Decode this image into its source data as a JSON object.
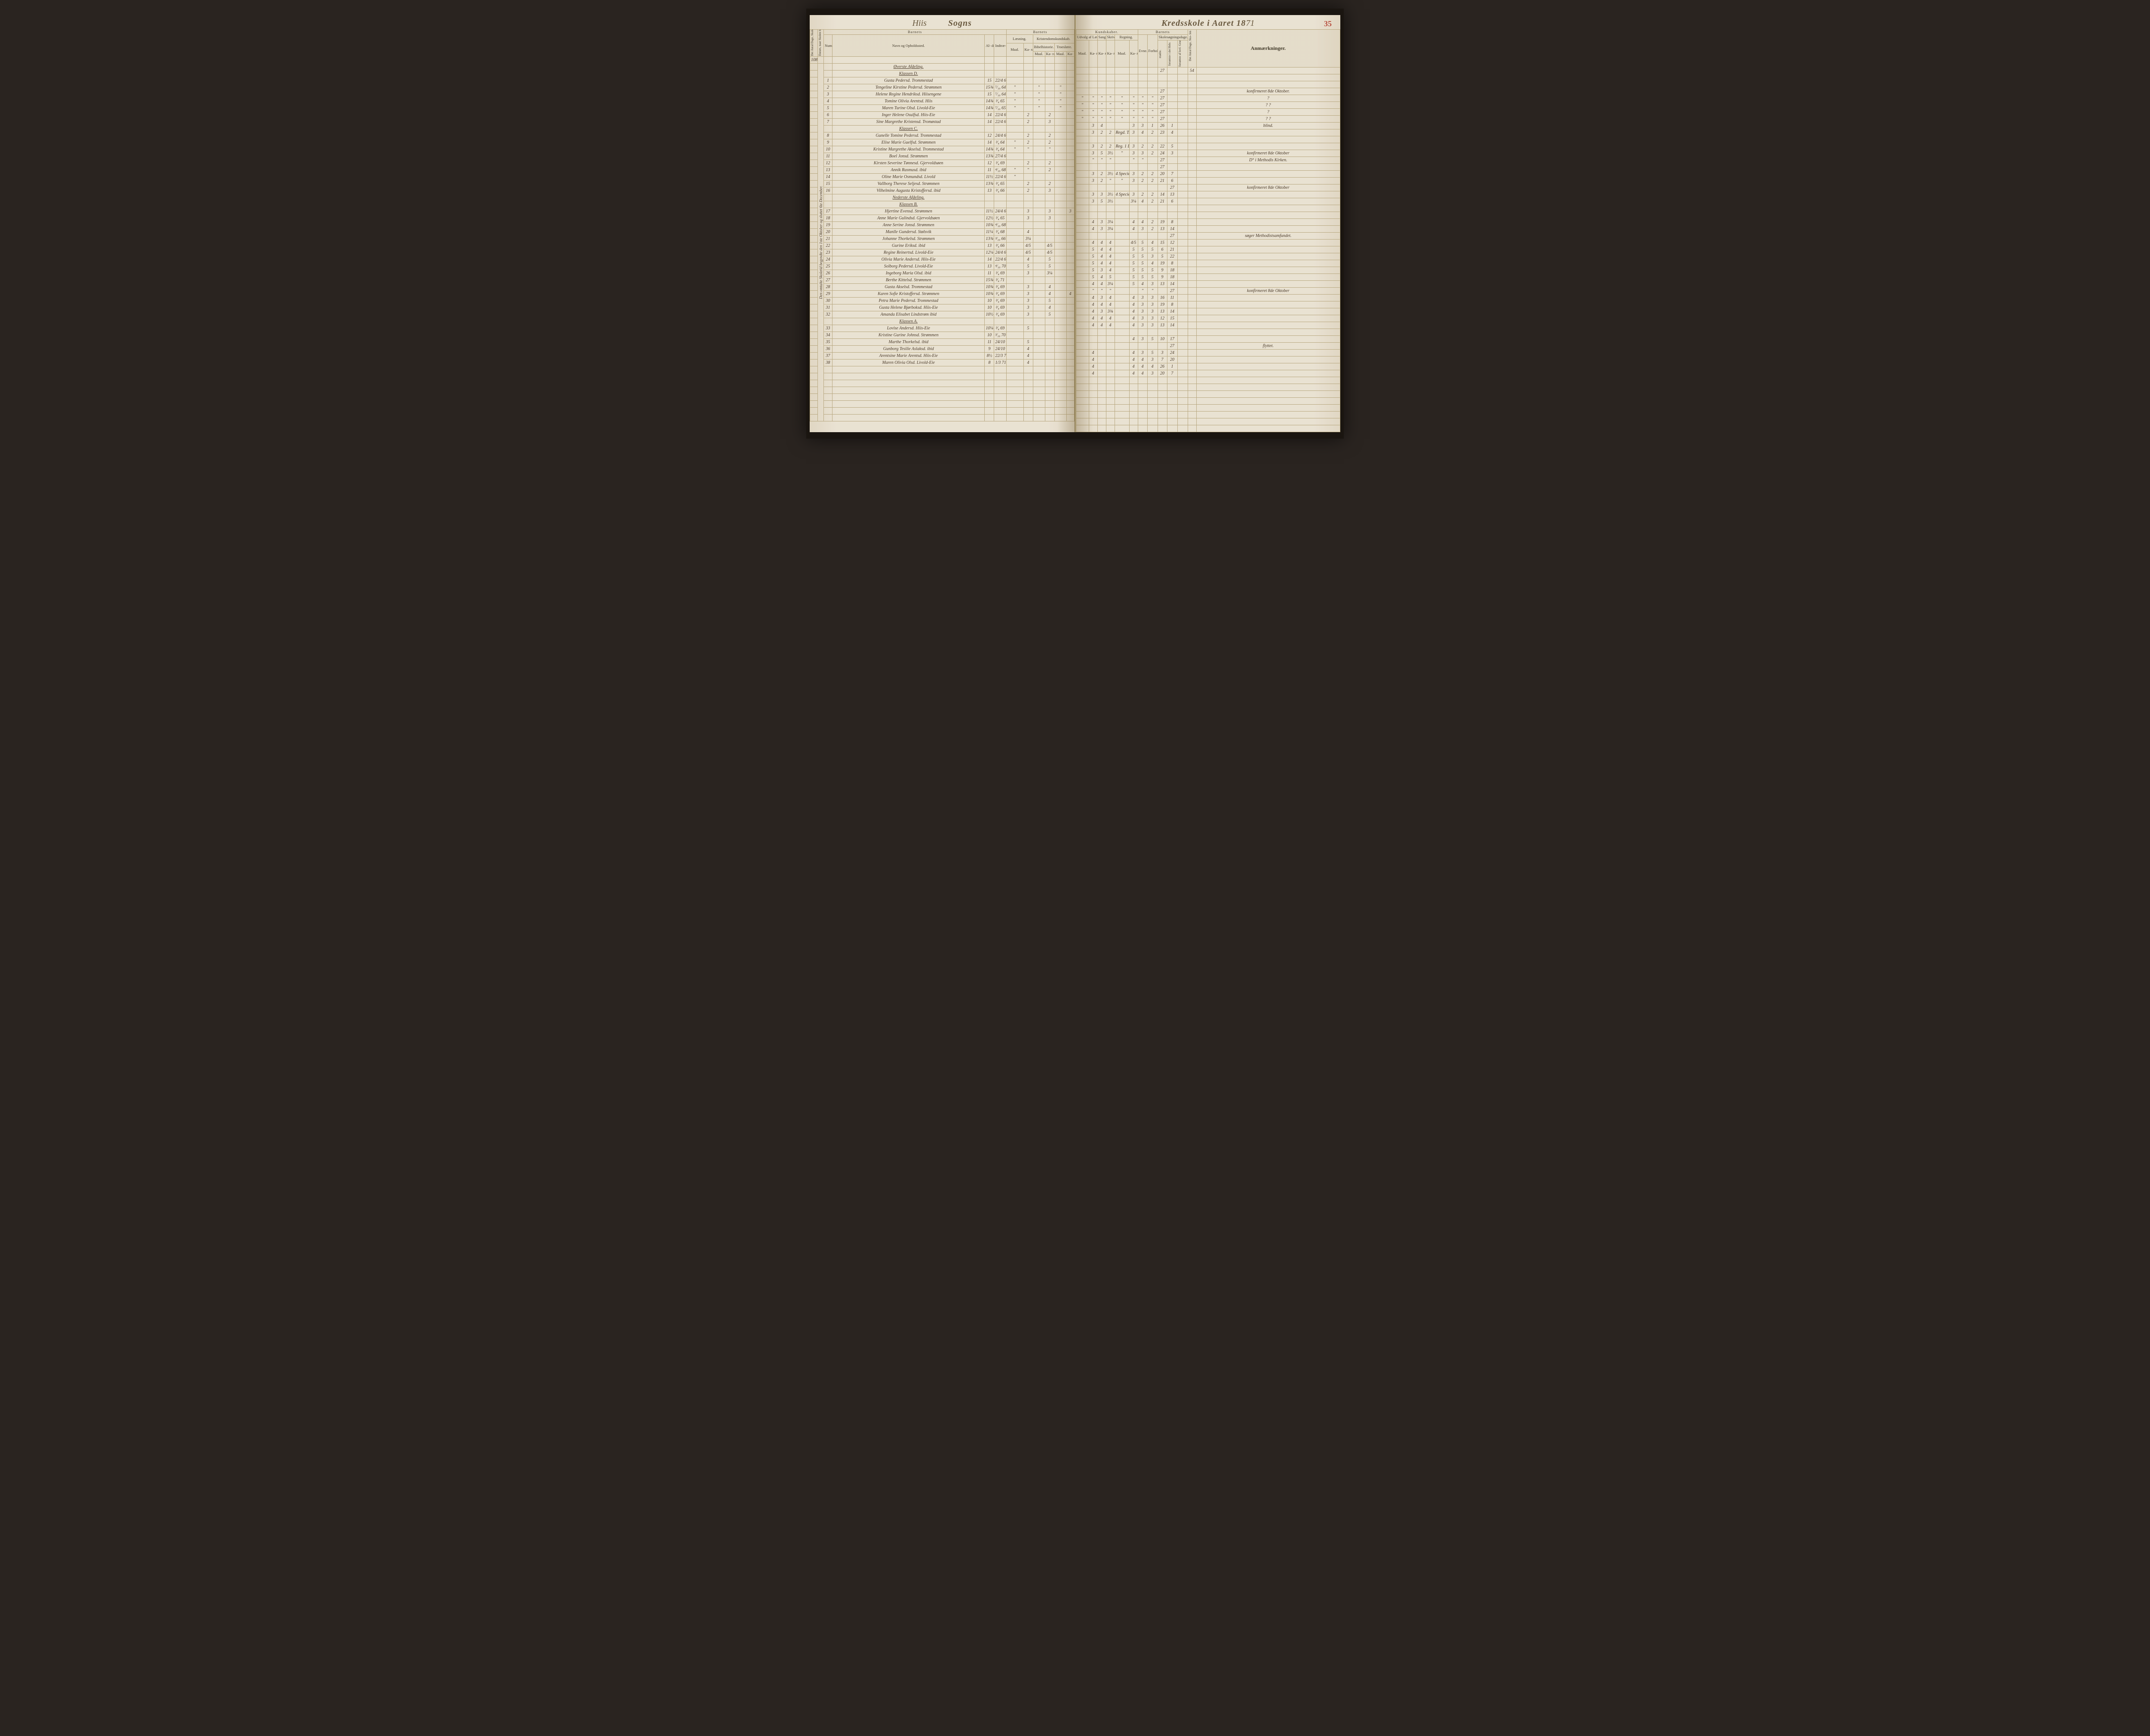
{
  "page_number": "35",
  "header": {
    "parish_handwritten": "Hiis",
    "sogns": "Sogns",
    "kredsskole": "Kredsskole i Aaret 18",
    "year_hand": "71"
  },
  "col_headers": {
    "left_group": "Barnets",
    "nummer": "Num-\nmer.",
    "navn": "Navn og Opholdssted.",
    "alder": "Al-\nder.",
    "indtr": "Indtræ-\ndelses-\nDatum.",
    "laesning": "Læsning.",
    "kristendom": "Kristendomskundskab.",
    "bibel": "Bibelhistorie.",
    "troes": "Troeslære.",
    "maal": "Maal.",
    "karakter": "Ka-\nrak-\nter.",
    "kundskaber": "Kundskaber.",
    "udvalg": "Udvalg af\nLæsebogen.",
    "sang": "Sang.",
    "skriv": "Skriv-\nning.",
    "regning": "Regning.",
    "barnets2": "Barnets",
    "evne": "Evne.",
    "forhold": "Forhold.",
    "skolesog": "Skolesøgningsdage.",
    "modte": "mødte.",
    "fors_hele": "forsømte i\ndet Hele.",
    "fors_lov": "forsømte af\nlovl. Grund.",
    "antal_dage_v": "Det Antal Dage, Sko-\nlen i Virkeligheden\ner holdt.",
    "anm": "Anmærkninger.",
    "omgang": "Det Antal Dage, Skolen\nskal holdes i Kredsen.",
    "datum_skole": "Datum, naar Skolen be-\ngynder og slutter hver\nOmgang."
  },
  "top_totals": {
    "antal_dage": "108",
    "sd1": "27",
    "sd_total": "54"
  },
  "sections": [
    {
      "title": "Øverste Afdeling.",
      "sub": "Klassen D."
    },
    {
      "title": "Klassen C."
    },
    {
      "title": "Nederste Afdeling.",
      "sub": "Klassen B."
    },
    {
      "title": "Klassen A."
    }
  ],
  "margin_left": "Den omtalte Skoletid begyndte den 1ste Oktober og sluttet 6te December.",
  "rows": [
    {
      "n": "1",
      "name": "Gusta Pedersd. Trommestad",
      "ald": "15",
      "dat": "22/4 65",
      "m1": "",
      "k1": "",
      "m2": "",
      "k2": "",
      "m3": "",
      "k3": "",
      "m4": "",
      "k4": "",
      "k5": "",
      "k6": "",
      "m5": "",
      "k7": "",
      "ev": "",
      "fo": "",
      "md": "27",
      "f1": "",
      "f2": "",
      "anm": "konfirmeret 8de Oktober."
    },
    {
      "n": "2",
      "name": "Tengeline Kirstine Pedersd. Strømmen",
      "ald": "15¾",
      "dat": "⁷⁄₁₀ 64",
      "m1": "\"",
      "k1": "",
      "m2": "\"",
      "k2": "",
      "m3": "\"",
      "k3": "",
      "m4": "\"",
      "k4": "\"",
      "k5": "\"",
      "k6": "\"",
      "m5": "\"",
      "k7": "\"",
      "ev": "\"",
      "fo": "\"",
      "md": "27",
      "f1": "",
      "f2": "",
      "anm": "?"
    },
    {
      "n": "3",
      "name": "Helene Regine Hendriksd. Hiisengene",
      "ald": "15",
      "dat": "⁷⁄₁₀ 64",
      "m1": "\"",
      "k1": "",
      "m2": "\"",
      "k2": "",
      "m3": "\"",
      "k3": "",
      "m4": "\"",
      "k4": "\"",
      "k5": "\"",
      "k6": "\"",
      "m5": "\"",
      "k7": "\"",
      "ev": "\"",
      "fo": "\"",
      "md": "27",
      "f1": "",
      "f2": "",
      "anm": "?    ?"
    },
    {
      "n": "4",
      "name": "Tomine Olivia Arentsd. Hiis",
      "ald": "14¾",
      "dat": "³⁄₄ 65",
      "m1": "\"",
      "k1": "",
      "m2": "\"",
      "k2": "",
      "m3": "\"",
      "k3": "",
      "m4": "\"",
      "k4": "\"",
      "k5": "\"",
      "k6": "\"",
      "m5": "\"",
      "k7": "\"",
      "ev": "\"",
      "fo": "\"",
      "md": "27",
      "f1": "",
      "f2": "",
      "anm": "?"
    },
    {
      "n": "5",
      "name": "Maren Turine Olsd. Livold-Eie",
      "ald": "14¾",
      "dat": "⁷⁄₁₀ 65",
      "m1": "\"",
      "k1": "",
      "m2": "\"",
      "k2": "",
      "m3": "\"",
      "k3": "",
      "m4": "\"",
      "k4": "\"",
      "k5": "\"",
      "k6": "\"",
      "m5": "\"",
      "k7": "\"",
      "ev": "\"",
      "fo": "\"",
      "md": "27",
      "f1": "",
      "f2": "",
      "anm": "?    ?"
    },
    {
      "n": "6",
      "name": "Inger Helene Osulfsd. Hiis-Eie",
      "ald": "14",
      "dat": "22/4 65",
      "m1": "",
      "k1": "2",
      "m2": "",
      "k2": "2",
      "m3": "",
      "k3": "",
      "m4": "",
      "k4": "3",
      "k5": "4",
      "k6": "",
      "m5": "",
      "k7": "3",
      "ev": "3",
      "fo": "1",
      "md": "26",
      "f1": "1",
      "f2": "",
      "anm": "blind."
    },
    {
      "n": "7",
      "name": "Sine Margrethe Kristensd. Tromøstad",
      "ald": "14",
      "dat": "22/4 65",
      "m1": "",
      "k1": "2",
      "m2": "",
      "k2": "3",
      "m3": "",
      "k3": "",
      "m4": "",
      "k4": "3",
      "k5": "2",
      "k6": "2",
      "m5": "Regd. Tr.",
      "k7": "3",
      "ev": "4",
      "fo": "2",
      "md": "23",
      "f1": "4",
      "f2": "",
      "anm": ""
    },
    {
      "n": "8",
      "name": "Gunelle Tomine Pedersd. Trommestad",
      "ald": "12",
      "dat": "24/4 68",
      "m1": "",
      "k1": "2",
      "m2": "",
      "k2": "2",
      "m3": "",
      "k3": "",
      "m4": "",
      "k4": "3",
      "k5": "2",
      "k6": "2",
      "m5": "Reg. 1 Del",
      "k7": "3",
      "ev": "2",
      "fo": "2",
      "md": "22",
      "f1": "5",
      "f2": "",
      "anm": ""
    },
    {
      "n": "9",
      "name": "Elise Marie Guelfsd. Strømmen",
      "ald": "14",
      "dat": "³⁄₄ 64",
      "m1": "\"",
      "k1": "2",
      "m2": "",
      "k2": "2",
      "m3": "",
      "k3": "",
      "m4": "",
      "k4": "3",
      "k5": "5",
      "k6": "3½",
      "m5": "\"",
      "k7": "3",
      "ev": "3",
      "fo": "2",
      "md": "24",
      "f1": "3",
      "f2": "",
      "anm": "konfirmeret 8de Oktober"
    },
    {
      "n": "10",
      "name": "Kristine Margrethe Akselsd. Trommestad",
      "ald": "14¾",
      "dat": "³⁄₄ 64",
      "m1": "\"",
      "k1": "\"",
      "m2": "",
      "k2": "\"",
      "m3": "",
      "k3": "",
      "m4": "",
      "k4": "\"",
      "k5": "\"",
      "k6": "\"",
      "m5": "",
      "k7": "\"",
      "ev": "\"",
      "fo": "",
      "md": "27",
      "f1": "",
      "f2": "",
      "anm": "D° i Methodis Kirken."
    },
    {
      "n": "11",
      "name": "Boel Jonsd. Strømmen",
      "ald": "13¾",
      "dat": "27/4 68",
      "m1": "",
      "k1": "",
      "m2": "",
      "k2": "",
      "m3": "",
      "k3": "",
      "m4": "",
      "k4": "",
      "k5": "",
      "k6": "",
      "m5": "",
      "k7": "",
      "ev": "",
      "fo": "",
      "md": "27",
      "f1": "",
      "f2": "",
      "anm": ""
    },
    {
      "n": "12",
      "name": "Kirsten Severine Tønnesd. Gjervoldsøen",
      "ald": "12",
      "dat": "³⁄₄ 69",
      "m1": "",
      "k1": "2",
      "m2": "",
      "k2": "2",
      "m3": "",
      "k3": "",
      "m4": "",
      "k4": "3",
      "k5": "2",
      "k6": "3½",
      "m5": "4 Specie",
      "k7": "3",
      "ev": "2",
      "fo": "2",
      "md": "20",
      "f1": "7",
      "f2": "",
      "anm": ""
    },
    {
      "n": "13",
      "name": "Annik Rasmusd. ibid",
      "ald": "11",
      "dat": "⁴⁄₁₀ 68",
      "m1": "\"",
      "k1": "\"",
      "m2": "",
      "k2": "2",
      "m3": "",
      "k3": "",
      "m4": "",
      "k4": "3",
      "k5": "2",
      "k6": "\"",
      "m5": "\"",
      "k7": "3",
      "ev": "2",
      "fo": "2",
      "md": "21",
      "f1": "6",
      "f2": "",
      "anm": ""
    },
    {
      "n": "14",
      "name": "Oline Marie Osmundsd. Livold",
      "ald": "11½",
      "dat": "22/4 65",
      "m1": "\"",
      "k1": "",
      "m2": "",
      "k2": "",
      "m3": "",
      "k3": "",
      "m4": "",
      "k4": "",
      "k5": "",
      "k6": "",
      "m5": "",
      "k7": "",
      "ev": "",
      "fo": "",
      "md": "",
      "f1": "27",
      "f2": "",
      "anm": "konfirmeret 8de Oktober"
    },
    {
      "n": "15",
      "name": "Vallborg Therese Seljesd. Strømmen",
      "ald": "13¾",
      "dat": "³⁄₄ 65",
      "m1": "",
      "k1": "2",
      "m2": "",
      "k2": "2",
      "m3": "",
      "k3": "",
      "m4": "",
      "k4": "3",
      "k5": "3",
      "k6": "3½",
      "m5": "4 Specie",
      "k7": "3",
      "ev": "2",
      "fo": "2",
      "md": "14",
      "f1": "13",
      "f2": "",
      "anm": ""
    },
    {
      "n": "16",
      "name": "Vilhelmine Augusta Kristoffersd. ibid",
      "ald": "13",
      "dat": "³⁄₄ 66",
      "m1": "",
      "k1": "2",
      "m2": "",
      "k2": "3",
      "m3": "",
      "k3": "",
      "m4": "",
      "k4": "3",
      "k5": "5",
      "k6": "3½",
      "m5": "",
      "k7": "3¼",
      "ev": "4",
      "fo": "2",
      "md": "21",
      "f1": "6",
      "f2": "",
      "anm": ""
    },
    {
      "n": "17",
      "name": "Hjertine Evensd. Strømmen",
      "ald": "11½",
      "dat": "24/4 68",
      "m1": "",
      "k1": "3",
      "m2": "",
      "k2": "3",
      "m3": "",
      "k3": "3",
      "m4": "",
      "k4": "4",
      "k5": "3",
      "k6": "3¼",
      "m5": "",
      "k7": "4",
      "ev": "4",
      "fo": "2",
      "md": "19",
      "f1": "8",
      "f2": "",
      "anm": ""
    },
    {
      "n": "18",
      "name": "Anne Marie Gulindsd. Gjervoldsøen",
      "ald": "12½",
      "dat": "³⁄₄ 65",
      "m1": "",
      "k1": "3",
      "m2": "",
      "k2": "3",
      "m3": "",
      "k3": "",
      "m4": "",
      "k4": "4",
      "k5": "3",
      "k6": "3¼",
      "m5": "",
      "k7": "4",
      "ev": "3",
      "fo": "2",
      "md": "13",
      "f1": "14",
      "f2": "",
      "anm": ""
    },
    {
      "n": "19",
      "name": "Anne Serine Jonsd. Strømmen",
      "ald": "10¾",
      "dat": "⁴⁄₁₀ 68",
      "m1": "",
      "k1": "",
      "m2": "",
      "k2": "",
      "m3": "",
      "k3": "",
      "m4": "",
      "k4": "",
      "k5": "",
      "k6": "",
      "m5": "",
      "k7": "",
      "ev": "",
      "fo": "",
      "md": "",
      "f1": "27",
      "f2": "",
      "anm": "søger Methodistsamfundet."
    },
    {
      "n": "20",
      "name": "Manlle Gundersd. Stølsvik",
      "ald": "11¼",
      "dat": "³⁄₄ 68",
      "m1": "",
      "k1": "4",
      "m2": "",
      "k2": "",
      "m3": "",
      "k3": "",
      "m4": "",
      "k4": "4",
      "k5": "4",
      "k6": "4",
      "m5": "",
      "k7": "4/5",
      "ev": "5",
      "fo": "4",
      "md": "15",
      "f1": "12",
      "f2": "",
      "anm": ""
    },
    {
      "n": "21",
      "name": "Johanne Thorkelsd. Strømmen",
      "ald": "13¾",
      "dat": "³⁄₁₀ 66",
      "m1": "",
      "k1": "3¼",
      "m2": "",
      "k2": "",
      "m3": "",
      "k3": "",
      "m4": "",
      "k4": "5",
      "k5": "4",
      "k6": "4",
      "m5": "",
      "k7": "5",
      "ev": "5",
      "fo": "5",
      "md": "6",
      "f1": "21",
      "f2": "",
      "anm": ""
    },
    {
      "n": "22",
      "name": "Gurine Eriksd. ibid",
      "ald": "13",
      "dat": "³⁄₄ 66",
      "m1": "",
      "k1": "4/5",
      "m2": "",
      "k2": "4/5",
      "m3": "",
      "k3": "",
      "m4": "",
      "k4": "5",
      "k5": "4",
      "k6": "4",
      "m5": "",
      "k7": "5",
      "ev": "5",
      "fo": "3",
      "md": "5",
      "f1": "22",
      "f2": "",
      "anm": ""
    },
    {
      "n": "23",
      "name": "Regine Reinertsd. Livold-Eie",
      "ald": "12¼",
      "dat": "24/4 66",
      "m1": "",
      "k1": "4/5",
      "m2": "",
      "k2": "4/5",
      "m3": "",
      "k3": "",
      "m4": "",
      "k4": "5",
      "k5": "4",
      "k6": "4",
      "m5": "",
      "k7": "5",
      "ev": "5",
      "fo": "4",
      "md": "19",
      "f1": "8",
      "f2": "",
      "anm": ""
    },
    {
      "n": "24",
      "name": "Olivia Marie Andersd. Hiis-Eie",
      "ald": "14",
      "dat": "22/4 65",
      "m1": "",
      "k1": "4",
      "m2": "",
      "k2": "5",
      "m3": "",
      "k3": "",
      "m4": "",
      "k4": "5",
      "k5": "3",
      "k6": "4",
      "m5": "",
      "k7": "5",
      "ev": "5",
      "fo": "5",
      "md": "9",
      "f1": "18",
      "f2": "",
      "anm": ""
    },
    {
      "n": "25",
      "name": "Solborg Pedersd. Livold-Eie",
      "ald": "13",
      "dat": "⁴⁄₁₀ 70",
      "m1": "",
      "k1": "5",
      "m2": "",
      "k2": "5",
      "m3": "",
      "k3": "",
      "m4": "",
      "k4": "5",
      "k5": "4",
      "k6": "5",
      "m5": "",
      "k7": "5",
      "ev": "5",
      "fo": "5",
      "md": "9",
      "f1": "18",
      "f2": "",
      "anm": ""
    },
    {
      "n": "26",
      "name": "Ingeborg Maria Olsd. ibid",
      "ald": "11",
      "dat": "³⁄₄ 69",
      "m1": "",
      "k1": "3",
      "m2": "",
      "k2": "3¼",
      "m3": "",
      "k3": "",
      "m4": "",
      "k4": "4",
      "k5": "4",
      "k6": "3¼",
      "m5": "",
      "k7": "5",
      "ev": "4",
      "fo": "3",
      "md": "13",
      "f1": "14",
      "f2": "",
      "anm": ""
    },
    {
      "n": "27",
      "name": "Berthe Kittelsd. Strømmen",
      "ald": "15¾",
      "dat": "³⁄₄ 71",
      "m1": "",
      "k1": "",
      "m2": "",
      "k2": "",
      "m3": "",
      "k3": "",
      "m4": "",
      "k4": "\"",
      "k5": "\"",
      "k6": "\"",
      "m5": "",
      "k7": "",
      "ev": "\"",
      "fo": "\"",
      "md": "",
      "f1": "27",
      "f2": "",
      "anm": "konfirmeret 8de Oktober"
    },
    {
      "n": "28",
      "name": "Gusta Akselsd. Trommestad",
      "ald": "10¾",
      "dat": "³⁄₄ 69",
      "m1": "",
      "k1": "3",
      "m2": "",
      "k2": "4",
      "m3": "",
      "k3": "",
      "m4": "",
      "k4": "4",
      "k5": "3",
      "k6": "4",
      "m5": "",
      "k7": "4",
      "ev": "3",
      "fo": "3",
      "md": "16",
      "f1": "11",
      "f2": "",
      "anm": ""
    },
    {
      "n": "29",
      "name": "Karen Sofie Kristoffersd. Strømmen",
      "ald": "10¾",
      "dat": "³⁄₄ 69",
      "m1": "",
      "k1": "3",
      "m2": "",
      "k2": "4",
      "m3": "",
      "k3": "4",
      "m4": "",
      "k4": "4",
      "k5": "4",
      "k6": "4",
      "m5": "",
      "k7": "4",
      "ev": "3",
      "fo": "3",
      "md": "19",
      "f1": "8",
      "f2": "",
      "anm": ""
    },
    {
      "n": "30",
      "name": "Petra Marie Pedersd. Trommestad",
      "ald": "10",
      "dat": "³⁄₄ 69",
      "m1": "",
      "k1": "3",
      "m2": "",
      "k2": "5",
      "m3": "",
      "k3": "",
      "m4": "",
      "k4": "4",
      "k5": "3",
      "k6": "3¾",
      "m5": "",
      "k7": "4",
      "ev": "3",
      "fo": "3",
      "md": "13",
      "f1": "14",
      "f2": "",
      "anm": ""
    },
    {
      "n": "31",
      "name": "Gusta Helene Bjørboksd. Hiis-Eie",
      "ald": "10",
      "dat": "³⁄₄ 69",
      "m1": "",
      "k1": "3",
      "m2": "",
      "k2": "4",
      "m3": "",
      "k3": "",
      "m4": "",
      "k4": "4",
      "k5": "4",
      "k6": "4",
      "m5": "",
      "k7": "4",
      "ev": "3",
      "fo": "3",
      "md": "12",
      "f1": "15",
      "f2": "",
      "anm": ""
    },
    {
      "n": "32",
      "name": "Amanda Elisabet Lindstrøm ibid",
      "ald": "10½",
      "dat": "³⁄₄ 69",
      "m1": "",
      "k1": "3",
      "m2": "",
      "k2": "5",
      "m3": "",
      "k3": "",
      "m4": "",
      "k4": "4",
      "k5": "4",
      "k6": "4",
      "m5": "",
      "k7": "4",
      "ev": "3",
      "fo": "3",
      "md": "13",
      "f1": "14",
      "f2": "",
      "anm": ""
    },
    {
      "n": "33",
      "name": "Lovise Andersd. Hiis-Eie",
      "ald": "10¼",
      "dat": "³⁄₄ 69",
      "m1": "",
      "k1": "5",
      "m2": "",
      "k2": "",
      "m3": "",
      "k3": "",
      "m4": "",
      "k4": "",
      "k5": "",
      "k6": "",
      "m5": "",
      "k7": "4",
      "ev": "3",
      "fo": "5",
      "md": "10",
      "f1": "17",
      "f2": "",
      "anm": ""
    },
    {
      "n": "34",
      "name": "Kristine Gurine Johnsd. Strømmen",
      "ald": "10",
      "dat": "³⁄₁₀ 70",
      "m1": "",
      "k1": "",
      "m2": "",
      "k2": "",
      "m3": "",
      "k3": "",
      "m4": "",
      "k4": "",
      "k5": "",
      "k6": "",
      "m5": "",
      "k7": "",
      "ev": "",
      "fo": "",
      "md": "",
      "f1": "27",
      "f2": "",
      "anm": "flyttet."
    },
    {
      "n": "35",
      "name": "Marthe Thorkelsd. ibid",
      "ald": "11",
      "dat": "24/10 70",
      "m1": "",
      "k1": "5",
      "m2": "",
      "k2": "",
      "m3": "",
      "k3": "",
      "m4": "",
      "k4": "4",
      "k5": "",
      "k6": "",
      "m5": "",
      "k7": "4",
      "ev": "3",
      "fo": "5",
      "md": "3",
      "f1": "24",
      "f2": "",
      "anm": ""
    },
    {
      "n": "36",
      "name": "Gunborg Tesilie Aslaksd. ibid",
      "ald": "9",
      "dat": "24/10 70",
      "m1": "",
      "k1": "4",
      "m2": "",
      "k2": "",
      "m3": "",
      "k3": "",
      "m4": "",
      "k4": "4",
      "k5": "",
      "k6": "",
      "m5": "",
      "k7": "4",
      "ev": "4",
      "fo": "3",
      "md": "7",
      "f1": "20",
      "f2": "",
      "anm": ""
    },
    {
      "n": "37",
      "name": "Arentsine Marie Arentsd. Hiis-Eie",
      "ald": "8½",
      "dat": "22/3 71",
      "m1": "",
      "k1": "4",
      "m2": "",
      "k2": "",
      "m3": "",
      "k3": "",
      "m4": "",
      "k4": "4",
      "k5": "",
      "k6": "",
      "m5": "",
      "k7": "4",
      "ev": "4",
      "fo": "4",
      "md": "26",
      "f1": "1",
      "f2": "",
      "anm": ""
    },
    {
      "n": "38",
      "name": "Maren Olivia Olsd. Livold-Eie",
      "ald": "8",
      "dat": "1/3 71",
      "m1": "",
      "k1": "4",
      "m2": "",
      "k2": "",
      "m3": "",
      "k3": "",
      "m4": "",
      "k4": "4",
      "k5": "",
      "k6": "",
      "m5": "",
      "k7": "4",
      "ev": "4",
      "fo": "3",
      "md": "20",
      "f1": "7",
      "f2": "",
      "anm": ""
    }
  ],
  "blank_rows": 8,
  "colors": {
    "page_bg": "#e8e0d0",
    "rule": "#b8a880",
    "ink": "#4a3a28",
    "print": "#403828",
    "pagenum": "#b85040"
  }
}
